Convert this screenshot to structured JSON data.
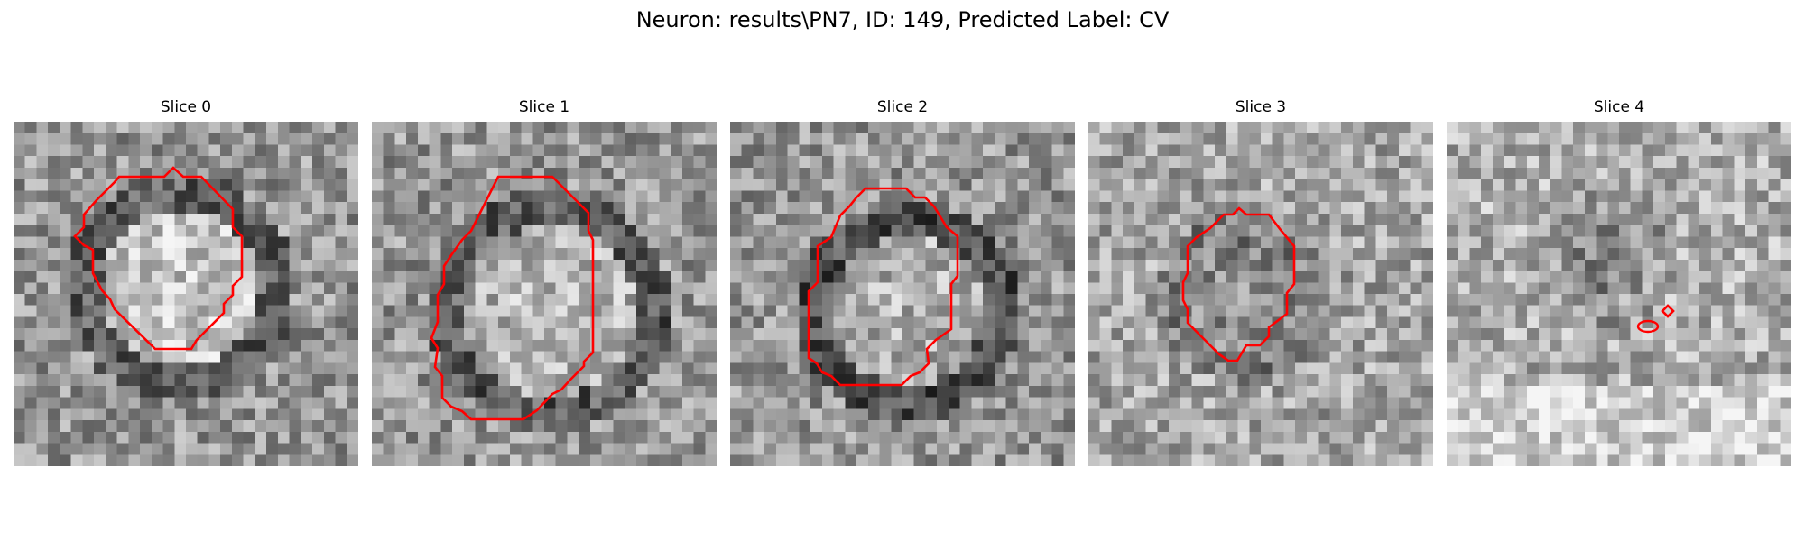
{
  "figure": {
    "title": "Neuron: results\\PN7, ID: 149, Predicted Label: CV"
  },
  "colors": {
    "contour": "#ff0000",
    "background": "#ffffff"
  },
  "panels": [
    {
      "title": "Slice 0"
    },
    {
      "title": "Slice 1"
    },
    {
      "title": "Slice 2"
    },
    {
      "title": "Slice 3"
    },
    {
      "title": "Slice 4"
    }
  ]
}
